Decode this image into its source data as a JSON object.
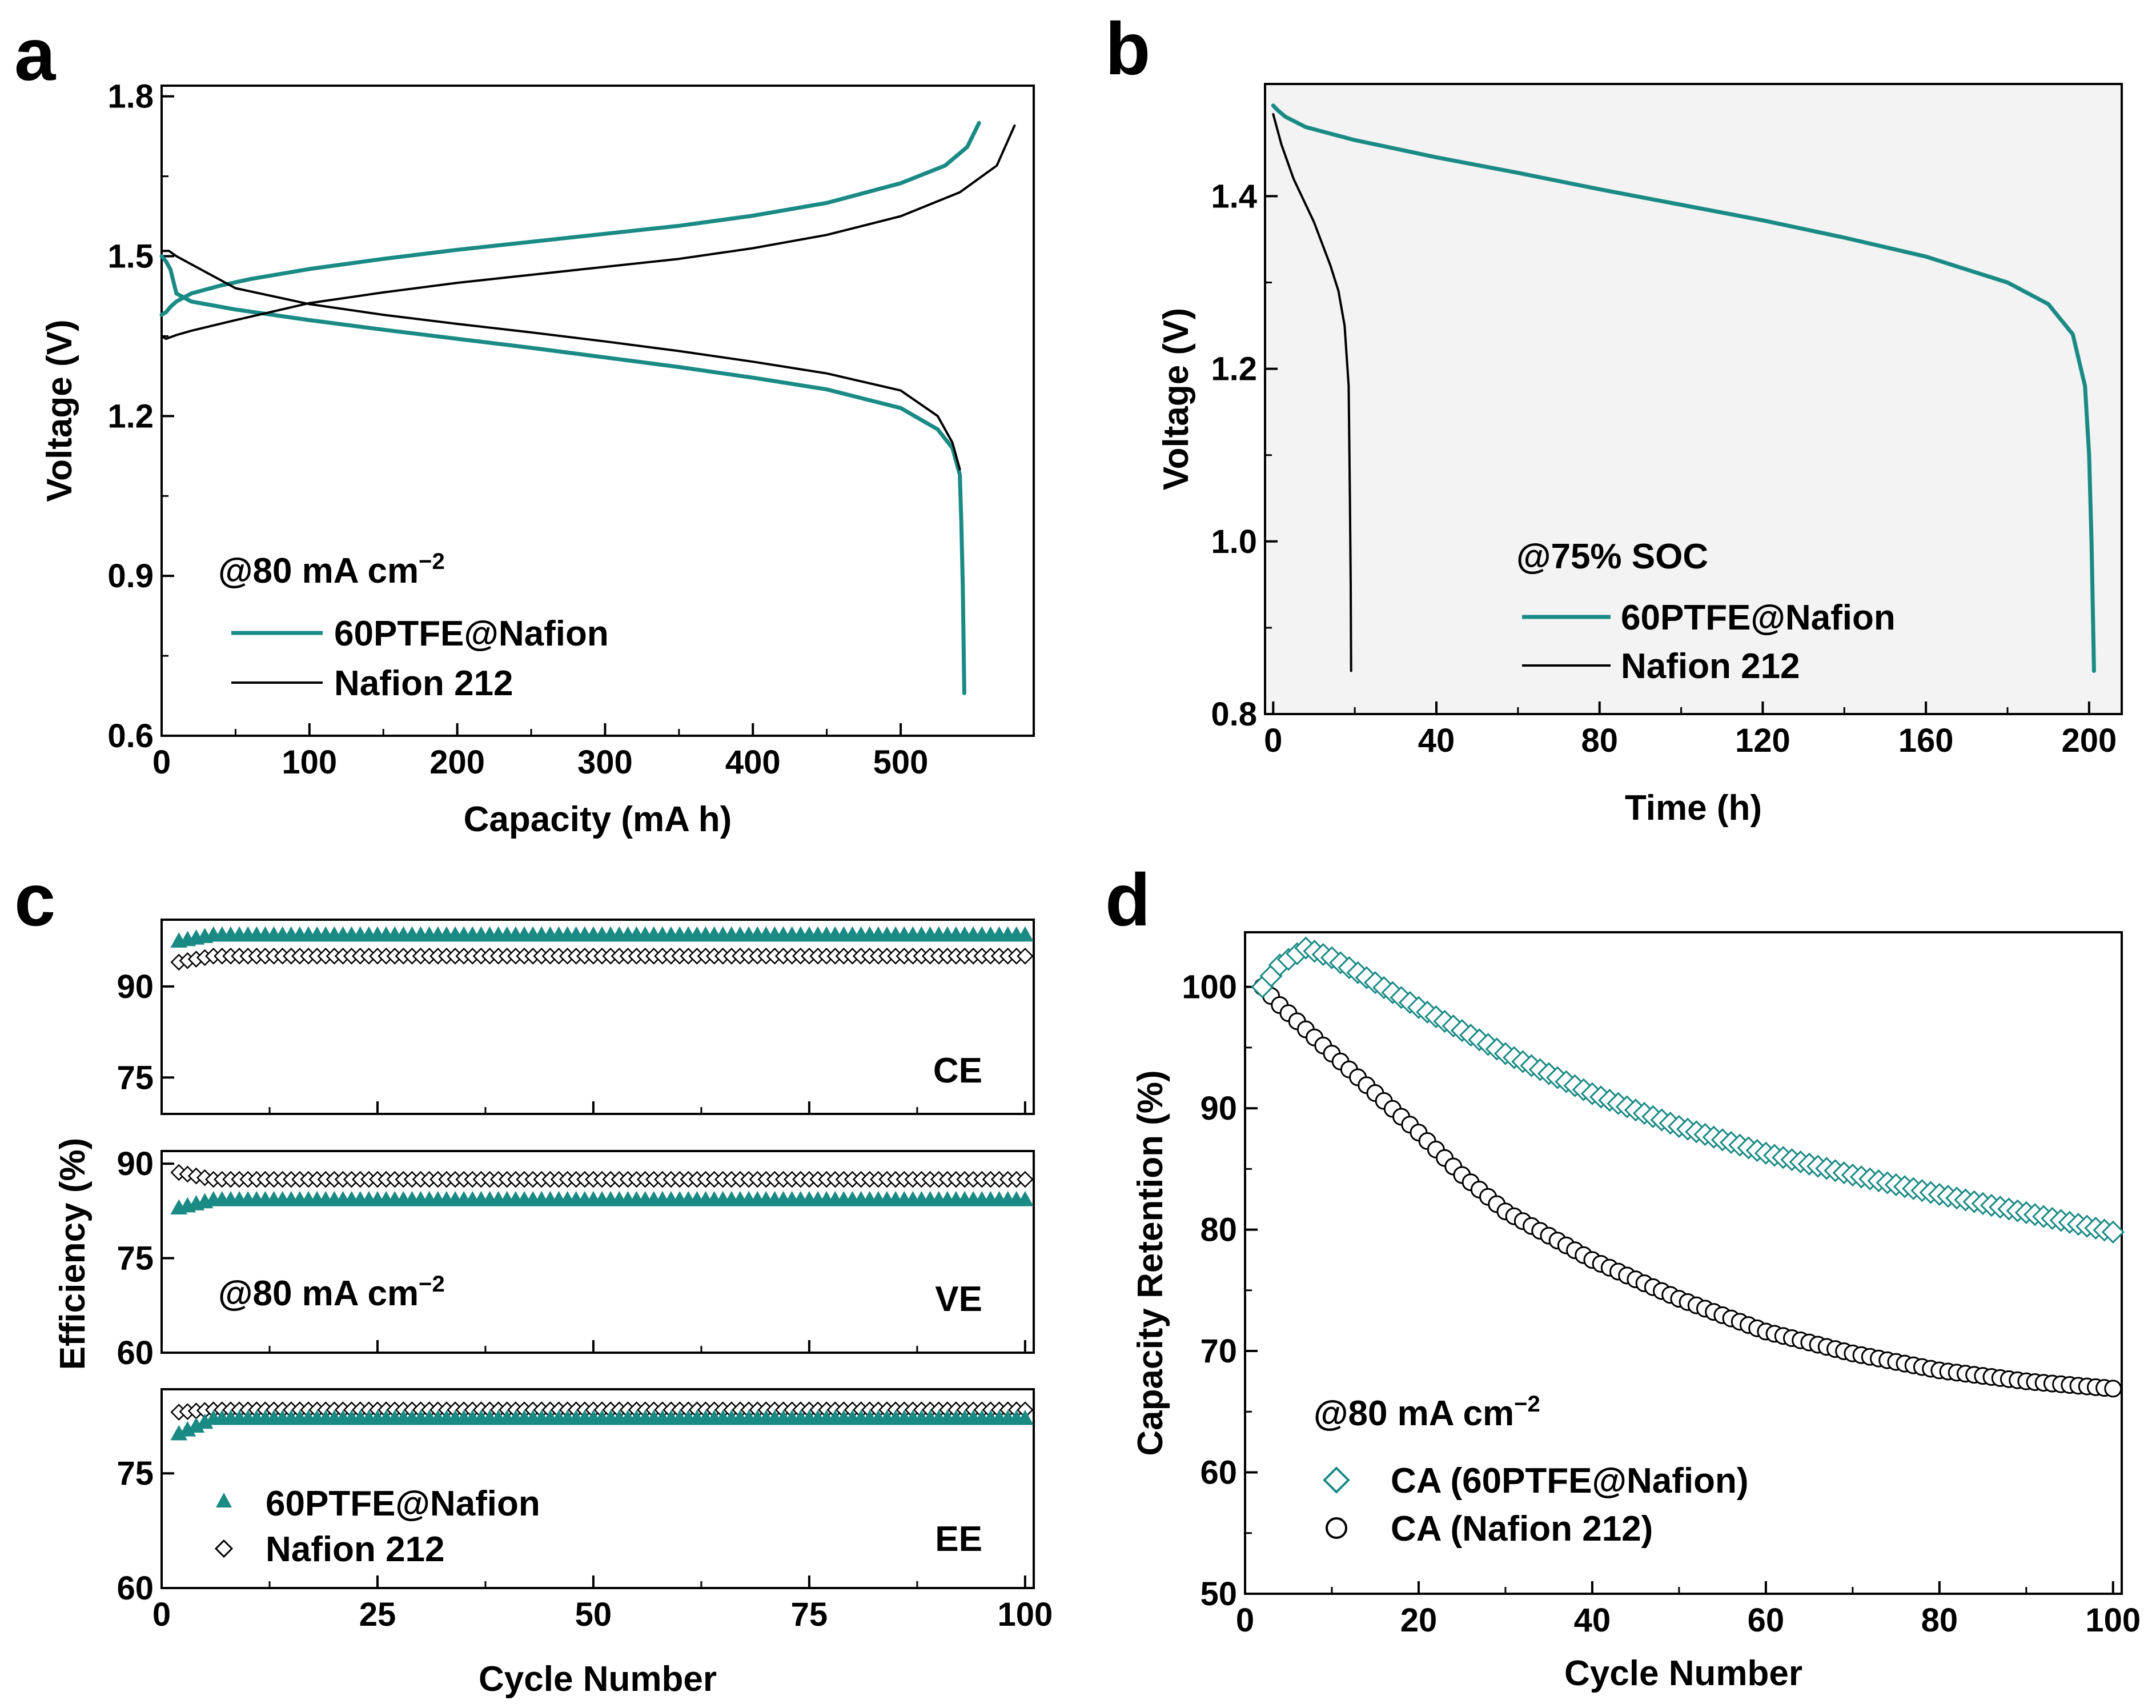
{
  "colors": {
    "teal": "#1a8a85",
    "black": "#000000",
    "panel_b_bg": "#f3f3f3"
  },
  "chart_data": [
    {
      "id": "a",
      "type": "line",
      "panel_label": "a",
      "xlabel": "Capacity (mA h)",
      "ylabel": "Voltage (V)",
      "xlim": [
        0,
        590
      ],
      "ylim": [
        0.6,
        1.82
      ],
      "xticks": [
        0,
        100,
        200,
        300,
        400,
        500
      ],
      "yticks": [
        0.6,
        0.9,
        1.2,
        1.5,
        1.8
      ],
      "yticklabels": [
        "0.6",
        "0.9",
        "1.2",
        "1.5",
        "1.8"
      ],
      "annotation_current": {
        "text": "@80 mA cm",
        "sup": "−2"
      },
      "series": [
        {
          "name": "60PTFE@Nafion",
          "role": "charge",
          "color": "#1a8a85",
          "points": [
            [
              0,
              1.39
            ],
            [
              3,
              1.395
            ],
            [
              6,
              1.405
            ],
            [
              10,
              1.415
            ],
            [
              20,
              1.43
            ],
            [
              40,
              1.445
            ],
            [
              60,
              1.457
            ],
            [
              100,
              1.476
            ],
            [
              150,
              1.495
            ],
            [
              200,
              1.512
            ],
            [
              250,
              1.527
            ],
            [
              300,
              1.542
            ],
            [
              350,
              1.557
            ],
            [
              400,
              1.576
            ],
            [
              450,
              1.6
            ],
            [
              500,
              1.637
            ],
            [
              530,
              1.67
            ],
            [
              545,
              1.705
            ],
            [
              553,
              1.75
            ]
          ]
        },
        {
          "name": "60PTFE@Nafion",
          "role": "discharge",
          "color": "#1a8a85",
          "points": [
            [
              0,
              1.5
            ],
            [
              3,
              1.49
            ],
            [
              6,
              1.475
            ],
            [
              10,
              1.43
            ],
            [
              20,
              1.415
            ],
            [
              50,
              1.4
            ],
            [
              100,
              1.38
            ],
            [
              150,
              1.362
            ],
            [
              200,
              1.345
            ],
            [
              250,
              1.328
            ],
            [
              300,
              1.31
            ],
            [
              350,
              1.292
            ],
            [
              400,
              1.272
            ],
            [
              450,
              1.25
            ],
            [
              500,
              1.215
            ],
            [
              525,
              1.175
            ],
            [
              535,
              1.14
            ],
            [
              540,
              1.09
            ],
            [
              541,
              1.0
            ],
            [
              542,
              0.88
            ],
            [
              543,
              0.68
            ]
          ]
        },
        {
          "name": "Nafion 212",
          "role": "charge",
          "color": "#000000",
          "points": [
            [
              0,
              1.35
            ],
            [
              3,
              1.345
            ],
            [
              10,
              1.352
            ],
            [
              20,
              1.36
            ],
            [
              50,
              1.38
            ],
            [
              100,
              1.412
            ],
            [
              150,
              1.432
            ],
            [
              200,
              1.45
            ],
            [
              250,
              1.465
            ],
            [
              300,
              1.48
            ],
            [
              350,
              1.495
            ],
            [
              400,
              1.515
            ],
            [
              450,
              1.54
            ],
            [
              500,
              1.575
            ],
            [
              540,
              1.62
            ],
            [
              565,
              1.67
            ],
            [
              577,
              1.745
            ]
          ]
        },
        {
          "name": "Nafion 212",
          "role": "discharge",
          "color": "#000000",
          "points": [
            [
              0,
              1.51
            ],
            [
              5,
              1.51
            ],
            [
              10,
              1.5
            ],
            [
              30,
              1.47
            ],
            [
              50,
              1.44
            ],
            [
              100,
              1.41
            ],
            [
              150,
              1.39
            ],
            [
              200,
              1.373
            ],
            [
              250,
              1.357
            ],
            [
              300,
              1.34
            ],
            [
              350,
              1.322
            ],
            [
              400,
              1.302
            ],
            [
              450,
              1.28
            ],
            [
              500,
              1.248
            ],
            [
              525,
              1.2
            ],
            [
              535,
              1.15
            ],
            [
              540,
              1.1
            ]
          ]
        }
      ],
      "legend": [
        "60PTFE@Nafion",
        "Nafion 212"
      ]
    },
    {
      "id": "b",
      "type": "line",
      "panel_label": "b",
      "xlabel": "Time (h)",
      "ylabel": "Voltage (V)",
      "xlim": [
        -2,
        208
      ],
      "ylim": [
        0.8,
        1.53
      ],
      "xticks": [
        0,
        40,
        80,
        120,
        160,
        200
      ],
      "yticks": [
        0.8,
        1.0,
        1.2,
        1.4
      ],
      "yticklabels": [
        "0.8",
        "1.0",
        "1.2",
        "1.4"
      ],
      "annotation": "@75% SOC",
      "series": [
        {
          "name": "60PTFE@Nafion",
          "color": "#1a8a85",
          "points": [
            [
              0,
              1.505
            ],
            [
              1,
              1.5
            ],
            [
              3,
              1.492
            ],
            [
              8,
              1.48
            ],
            [
              20,
              1.465
            ],
            [
              40,
              1.445
            ],
            [
              60,
              1.427
            ],
            [
              80,
              1.408
            ],
            [
              100,
              1.39
            ],
            [
              120,
              1.372
            ],
            [
              140,
              1.352
            ],
            [
              160,
              1.33
            ],
            [
              180,
              1.3
            ],
            [
              190,
              1.275
            ],
            [
              196,
              1.24
            ],
            [
              199,
              1.18
            ],
            [
              200,
              1.1
            ],
            [
              200.6,
              1.0
            ],
            [
              201,
              0.9
            ],
            [
              201.2,
              0.85
            ]
          ]
        },
        {
          "name": "Nafion 212",
          "color": "#000000",
          "points": [
            [
              0,
              1.495
            ],
            [
              2,
              1.46
            ],
            [
              5,
              1.42
            ],
            [
              10,
              1.37
            ],
            [
              14,
              1.32
            ],
            [
              16,
              1.29
            ],
            [
              17.5,
              1.25
            ],
            [
              18.5,
              1.18
            ],
            [
              18.8,
              1.05
            ],
            [
              19,
              0.95
            ],
            [
              19.1,
              0.85
            ]
          ]
        }
      ],
      "legend": [
        "60PTFE@Nafion",
        "Nafion 212"
      ]
    },
    {
      "id": "c",
      "type": "scatter",
      "panel_label": "c",
      "xlabel": "Cycle Number",
      "ylabel": "Efficiency (%)",
      "xlim": [
        0,
        101
      ],
      "xticks": [
        0,
        25,
        50,
        75,
        100
      ],
      "annotation_current": {
        "text": "@80 mA cm",
        "sup": "−2"
      },
      "subplots": [
        {
          "label": "CE",
          "ylim": [
            69,
            101
          ],
          "yticks": [
            75,
            90
          ],
          "yticklabels": [
            "75",
            "90"
          ],
          "series": [
            {
              "name": "60PTFE@Nafion",
              "start": 97.5,
              "steady": 98.5
            },
            {
              "name": "Nafion 212",
              "start": 94.0,
              "steady": 95.0
            }
          ]
        },
        {
          "label": "VE",
          "ylim": [
            60,
            92
          ],
          "yticks": [
            60,
            75,
            90
          ],
          "yticklabels": [
            "60",
            "75",
            "90"
          ],
          "series": [
            {
              "name": "60PTFE@Nafion",
              "start": 83.0,
              "steady": 84.3
            },
            {
              "name": "Nafion 212",
              "start": 88.6,
              "steady": 87.5
            }
          ]
        },
        {
          "label": "EE",
          "ylim": [
            60,
            86
          ],
          "yticks": [
            60,
            75
          ],
          "yticklabels": [
            "60",
            "75"
          ],
          "series": [
            {
              "name": "60PTFE@Nafion",
              "start": 80.2,
              "steady": 82.2
            },
            {
              "name": "Nafion 212",
              "start": 83.0,
              "steady": 83.3
            }
          ]
        }
      ],
      "legend": [
        "60PTFE@Nafion",
        "Nafion 212"
      ]
    },
    {
      "id": "d",
      "type": "scatter",
      "panel_label": "d",
      "xlabel": "Cycle Number",
      "ylabel": "Capacity Retention (%)",
      "xlim": [
        0,
        101
      ],
      "ylim": [
        50,
        104.5
      ],
      "xticks": [
        0,
        20,
        40,
        60,
        80,
        100
      ],
      "yticks": [
        50,
        60,
        70,
        80,
        90,
        100
      ],
      "yticklabels": [
        "50",
        "60",
        "70",
        "80",
        "90",
        "100"
      ],
      "annotation_current": {
        "text": "@80 mA cm",
        "sup": "−2"
      },
      "series": [
        {
          "name": "CA (60PTFE@Nafion)",
          "marker": "diamond",
          "color": "#1a8a85",
          "anchors": [
            [
              2,
              100
            ],
            [
              4,
              101.8
            ],
            [
              7,
              103.2
            ],
            [
              10,
              102.4
            ],
            [
              20,
              98.3
            ],
            [
              30,
              94.5
            ],
            [
              40,
              91.2
            ],
            [
              50,
              88.5
            ],
            [
              60,
              86.3
            ],
            [
              70,
              84.5
            ],
            [
              80,
              82.9
            ],
            [
              90,
              81.4
            ],
            [
              100,
              79.8
            ]
          ]
        },
        {
          "name": "CA (Nafion 212)",
          "marker": "circle",
          "color": "#000000",
          "anchors": [
            [
              2,
              100
            ],
            [
              4,
              98.5
            ],
            [
              10,
              94.5
            ],
            [
              20,
              88
            ],
            [
              25,
              84.5
            ],
            [
              30,
              81.5
            ],
            [
              40,
              77.5
            ],
            [
              50,
              74.3
            ],
            [
              60,
              71.6
            ],
            [
              70,
              69.8
            ],
            [
              80,
              68.4
            ],
            [
              90,
              67.5
            ],
            [
              100,
              66.9
            ]
          ]
        }
      ],
      "legend": [
        "CA (60PTFE@Nafion)",
        "CA (Nafion 212)"
      ]
    }
  ]
}
